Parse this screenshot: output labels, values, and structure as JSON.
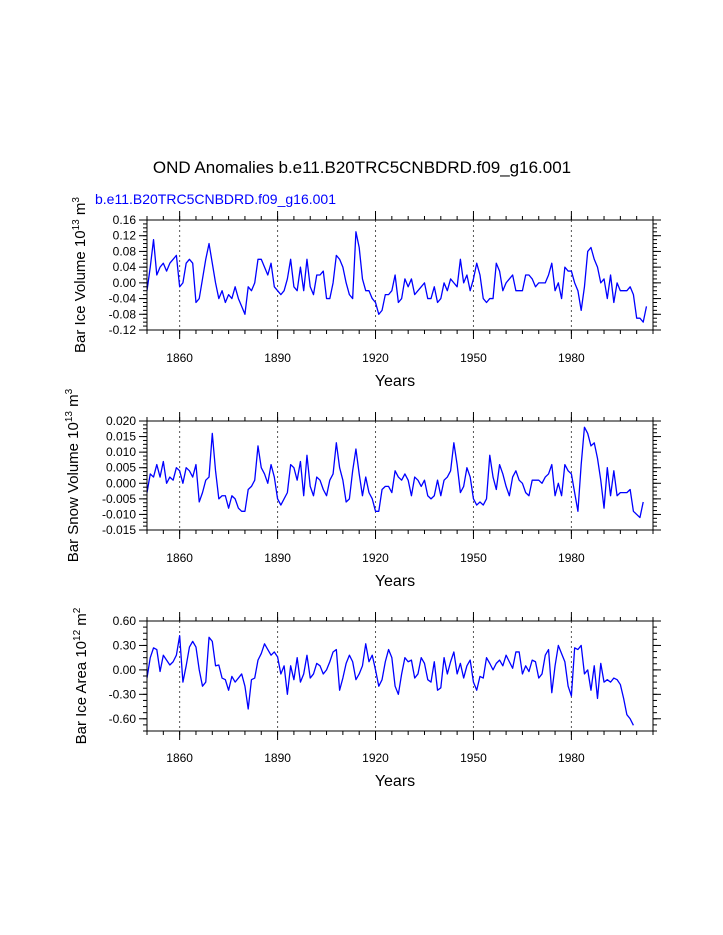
{
  "chart_data": {
    "type": "line",
    "title": "OND Anomalies b.e11.B20TRC5CNBDRD.f09_g16.001",
    "subtitle": "b.e11.B20TRC5CNBDRD.f09_g16.001",
    "line_color": "#0000ff",
    "grid_color": "#555555",
    "xlim": [
      1850,
      2005
    ],
    "xticks": [
      1860,
      1890,
      1920,
      1950,
      1980
    ],
    "xtick_labels": [
      "1860",
      "1890",
      "1920",
      "1950",
      "1980"
    ],
    "vlines": [
      1860,
      1890,
      1920,
      1950,
      1980
    ],
    "panels": [
      {
        "xlabel": "Years",
        "ylabel_main": "Bar Ice Volume 10",
        "ylabel_exp": "13",
        "ylabel_unit": " m",
        "ylabel_unit_exp": "3",
        "ylim": [
          -0.12,
          0.16
        ],
        "yticks": [
          -0.12,
          -0.08,
          -0.04,
          0.0,
          0.04,
          0.08,
          0.12,
          0.16
        ],
        "ytick_labels": [
          "-0.12",
          "-0.08",
          "-0.04",
          "0.00",
          "0.04",
          "0.08",
          "0.12",
          "0.16"
        ],
        "x_start": 1850,
        "values": [
          -0.02,
          0.04,
          0.11,
          0.02,
          0.04,
          0.05,
          0.03,
          0.05,
          0.06,
          0.07,
          -0.01,
          0.0,
          0.05,
          0.06,
          0.05,
          -0.05,
          -0.04,
          0.01,
          0.06,
          0.1,
          0.05,
          0.0,
          -0.04,
          -0.02,
          -0.05,
          -0.03,
          -0.04,
          -0.01,
          -0.04,
          -0.06,
          -0.08,
          -0.01,
          -0.02,
          0.0,
          0.06,
          0.06,
          0.04,
          0.02,
          0.05,
          -0.01,
          -0.02,
          -0.03,
          -0.02,
          0.01,
          0.06,
          -0.01,
          -0.02,
          0.04,
          -0.02,
          0.06,
          -0.01,
          -0.03,
          0.02,
          0.02,
          0.03,
          -0.04,
          -0.04,
          0.0,
          0.07,
          0.06,
          0.04,
          0.0,
          -0.03,
          -0.04,
          0.13,
          0.09,
          0.01,
          -0.02,
          -0.02,
          -0.04,
          -0.05,
          -0.08,
          -0.07,
          -0.03,
          -0.03,
          -0.02,
          0.02,
          -0.05,
          -0.04,
          0.01,
          -0.01,
          0.01,
          -0.03,
          -0.02,
          -0.01,
          0.0,
          -0.04,
          -0.04,
          -0.01,
          -0.05,
          -0.04,
          0.0,
          -0.02,
          0.01,
          0.0,
          -0.01,
          0.06,
          0.0,
          0.02,
          -0.02,
          0.01,
          0.05,
          0.02,
          -0.04,
          -0.05,
          -0.04,
          -0.04,
          0.05,
          0.03,
          -0.02,
          0.0,
          0.01,
          0.02,
          -0.02,
          -0.02,
          -0.02,
          0.02,
          0.02,
          0.01,
          -0.01,
          0.0,
          0.0,
          0.0,
          0.02,
          0.05,
          -0.02,
          0.0,
          -0.04,
          0.04,
          0.03,
          0.03,
          0.0,
          -0.02,
          -0.07,
          -0.01,
          0.08,
          0.09,
          0.06,
          0.04,
          0.0,
          0.01,
          -0.04,
          0.02,
          -0.05,
          0.0,
          -0.02,
          -0.02,
          -0.02,
          -0.01,
          -0.03,
          -0.09,
          -0.09,
          -0.1,
          -0.06
        ]
      },
      {
        "xlabel": "Years",
        "ylabel_main": "Bar Snow Volume 10",
        "ylabel_exp": "13",
        "ylabel_unit": " m",
        "ylabel_unit_exp": "3",
        "ylim": [
          -0.015,
          0.02
        ],
        "yticks": [
          -0.015,
          -0.01,
          -0.005,
          0.0,
          0.005,
          0.01,
          0.015,
          0.02
        ],
        "ytick_labels": [
          "-0.015",
          "-0.010",
          "-0.005",
          "0.000",
          "0.005",
          "0.010",
          "0.015",
          "0.020"
        ],
        "x_start": 1850,
        "values": [
          -0.003,
          0.003,
          0.002,
          0.006,
          0.002,
          0.007,
          0.0,
          0.002,
          0.001,
          0.005,
          0.004,
          0.0,
          0.005,
          0.004,
          0.002,
          0.006,
          -0.006,
          -0.003,
          0.001,
          0.002,
          0.016,
          0.004,
          -0.005,
          -0.004,
          -0.004,
          -0.008,
          -0.004,
          -0.005,
          -0.008,
          -0.009,
          -0.009,
          -0.002,
          -0.001,
          0.001,
          0.012,
          0.005,
          0.003,
          0.0,
          0.006,
          0.002,
          -0.005,
          -0.007,
          -0.005,
          -0.003,
          0.006,
          0.005,
          0.001,
          0.007,
          -0.004,
          0.009,
          -0.001,
          -0.004,
          0.002,
          0.001,
          -0.002,
          -0.004,
          0.001,
          0.003,
          0.013,
          0.005,
          0.001,
          -0.006,
          -0.005,
          0.004,
          0.011,
          0.003,
          -0.004,
          0.002,
          -0.003,
          -0.005,
          -0.009,
          -0.009,
          -0.002,
          -0.001,
          -0.001,
          -0.003,
          0.004,
          0.002,
          0.001,
          0.003,
          0.001,
          -0.004,
          0.002,
          0.001,
          -0.001,
          0.001,
          -0.004,
          -0.005,
          -0.004,
          0.001,
          -0.004,
          0.001,
          0.002,
          0.004,
          0.013,
          0.006,
          -0.003,
          -0.001,
          0.005,
          0.002,
          -0.005,
          -0.007,
          -0.006,
          -0.007,
          -0.005,
          0.009,
          0.002,
          -0.002,
          0.006,
          0.003,
          -0.001,
          -0.004,
          0.002,
          0.004,
          0.001,
          0.0,
          -0.003,
          -0.004,
          0.001,
          0.001,
          0.001,
          0.0,
          0.002,
          0.003,
          0.006,
          -0.004,
          0.0,
          -0.004,
          0.006,
          0.004,
          0.003,
          -0.003,
          -0.009,
          0.006,
          0.018,
          0.016,
          0.012,
          0.013,
          0.008,
          0.001,
          -0.008,
          0.005,
          -0.004,
          0.004,
          -0.004,
          -0.003,
          -0.003,
          -0.003,
          -0.002,
          -0.009,
          -0.01,
          -0.011,
          -0.006
        ]
      },
      {
        "xlabel": "Years",
        "ylabel_main": "Bar Ice Area 10",
        "ylabel_exp": "12",
        "ylabel_unit": " m",
        "ylabel_unit_exp": "2",
        "ylim": [
          -0.75,
          0.6
        ],
        "yticks": [
          -0.6,
          -0.3,
          0.0,
          0.3,
          0.6
        ],
        "ytick_labels": [
          "-0.60",
          "-0.30",
          "0.00",
          "0.30",
          "0.60"
        ],
        "x_start": 1850,
        "values": [
          -0.1,
          0.15,
          0.27,
          0.25,
          -0.02,
          0.18,
          0.12,
          0.06,
          0.1,
          0.18,
          0.42,
          -0.15,
          0.05,
          0.28,
          0.35,
          0.28,
          0.0,
          -0.2,
          -0.15,
          0.4,
          0.35,
          0.05,
          0.06,
          -0.1,
          -0.12,
          -0.25,
          -0.08,
          -0.15,
          -0.1,
          -0.05,
          -0.2,
          -0.48,
          -0.12,
          -0.1,
          0.12,
          0.2,
          0.32,
          0.25,
          0.18,
          0.22,
          0.16,
          -0.05,
          0.05,
          -0.3,
          0.05,
          -0.12,
          0.15,
          -0.15,
          -0.05,
          0.18,
          -0.1,
          -0.05,
          0.08,
          0.05,
          -0.05,
          0.0,
          0.1,
          0.22,
          0.25,
          -0.25,
          -0.1,
          0.08,
          0.18,
          0.1,
          -0.12,
          -0.05,
          0.05,
          0.32,
          0.1,
          0.18,
          0.0,
          -0.2,
          -0.12,
          0.1,
          0.25,
          0.15,
          -0.2,
          -0.3,
          -0.05,
          0.15,
          0.1,
          0.12,
          -0.1,
          -0.05,
          0.15,
          0.08,
          -0.12,
          -0.15,
          0.1,
          -0.25,
          -0.22,
          0.15,
          -0.05,
          0.1,
          0.22,
          -0.05,
          0.08,
          -0.1,
          0.05,
          0.12,
          -0.15,
          -0.25,
          -0.08,
          -0.1,
          0.15,
          0.08,
          0.0,
          0.08,
          0.12,
          0.05,
          0.18,
          0.1,
          0.02,
          0.22,
          0.22,
          -0.05,
          0.05,
          -0.02,
          0.12,
          0.1,
          -0.1,
          -0.05,
          0.18,
          0.25,
          -0.28,
          0.05,
          0.3,
          0.2,
          0.1,
          -0.2,
          -0.32,
          0.27,
          0.25,
          0.3,
          -0.05,
          0.0,
          -0.25,
          0.05,
          -0.35,
          0.08,
          -0.15,
          -0.12,
          -0.15,
          -0.1,
          -0.12,
          -0.18,
          -0.35,
          -0.55,
          -0.6,
          -0.68
        ]
      }
    ]
  }
}
